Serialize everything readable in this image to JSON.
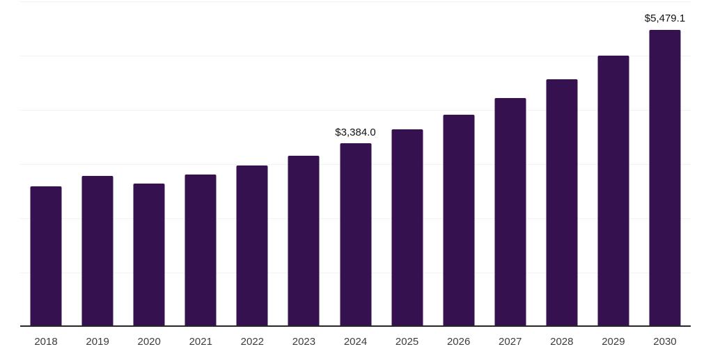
{
  "chart_data": {
    "type": "bar",
    "title": "",
    "xlabel": "",
    "ylabel": "",
    "categories": [
      "2018",
      "2019",
      "2020",
      "2021",
      "2022",
      "2023",
      "2024",
      "2025",
      "2026",
      "2027",
      "2028",
      "2029",
      "2030"
    ],
    "values": [
      2590,
      2780,
      2645,
      2810,
      2980,
      3160,
      3384.0,
      3640,
      3905,
      4215,
      4570,
      4995,
      5479.1
    ],
    "data_labels": [
      "",
      "",
      "",
      "",
      "",
      "",
      "$3,384.0",
      "",
      "",
      "",
      "",
      "",
      "$5,479.1"
    ],
    "ylim": [
      0,
      6000
    ],
    "gridline_step": 1000,
    "grid": "horizontal-only",
    "legend": "none",
    "y_axis_tick_labels": "none",
    "colors": {
      "bar": "#36114f",
      "gridline": "#f2f2f2",
      "axis_line": "#262626",
      "tick_label": "#3d3d3d",
      "data_label": "#111111",
      "background": "#ffffff"
    }
  }
}
